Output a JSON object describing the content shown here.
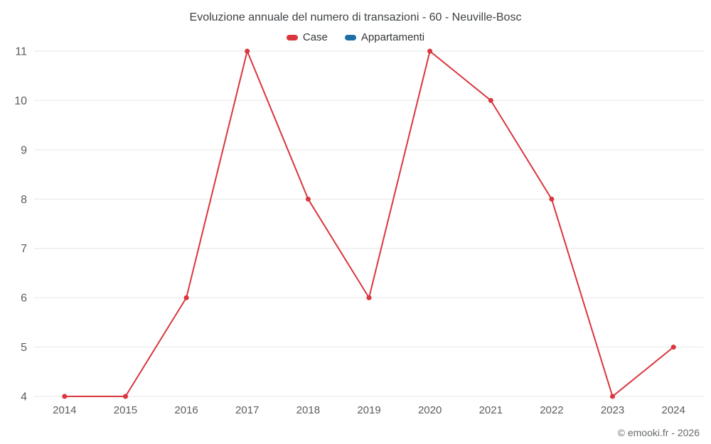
{
  "chart_data": {
    "type": "line",
    "title": "Evoluzione annuale del numero di transazioni - 60 - Neuville-Bosc",
    "x": [
      2014,
      2015,
      2016,
      2017,
      2018,
      2019,
      2020,
      2021,
      2022,
      2023,
      2024
    ],
    "series": [
      {
        "name": "Case",
        "color": "#d9363e",
        "values": [
          4,
          4,
          6,
          11,
          8,
          6,
          11,
          10,
          8,
          4,
          5
        ]
      },
      {
        "name": "Appartamenti",
        "color": "#1d6fa5",
        "values": []
      }
    ],
    "ylim": [
      4,
      11
    ],
    "yticks": [
      4,
      5,
      6,
      7,
      8,
      9,
      10,
      11
    ],
    "grid": true,
    "grid_color": "#e6e6e6",
    "tick_label_color": "#595c5e",
    "legend_position": "top",
    "marker_radius": 3.5,
    "line_width": 2
  },
  "footer": {
    "attribution": "© emooki.fr - 2026"
  }
}
